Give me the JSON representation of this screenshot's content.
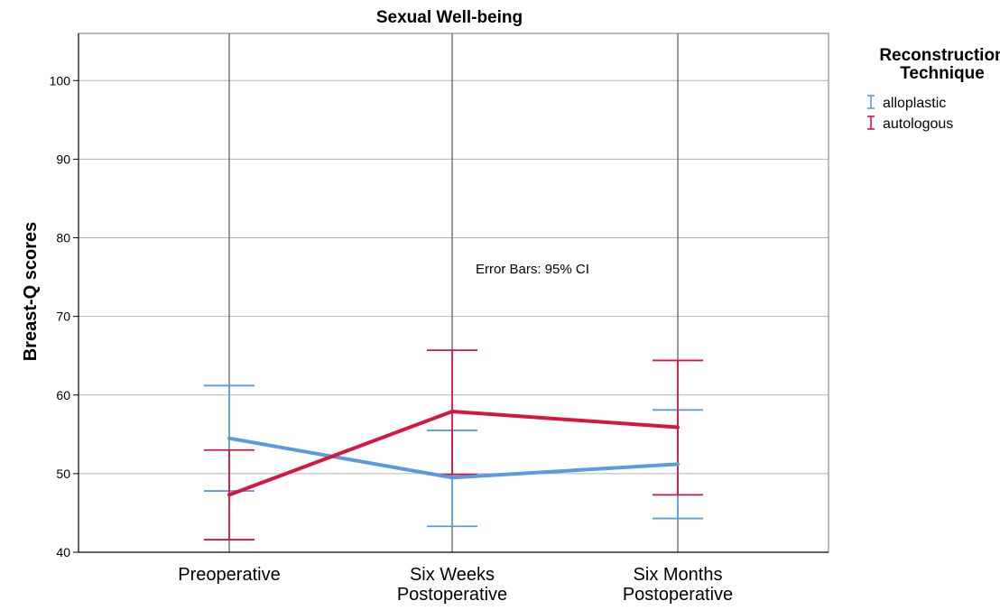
{
  "chart_data": {
    "type": "line",
    "title": "Sexual Well-being",
    "xlabel": "",
    "ylabel": "Breast-Q scores",
    "categories": [
      [
        "Preoperative"
      ],
      [
        "Six Weeks",
        "Postoperative"
      ],
      [
        "Six Months",
        "Postoperative"
      ]
    ],
    "ylim": [
      40,
      106
    ],
    "yticks": [
      40,
      50,
      60,
      70,
      80,
      90,
      100
    ],
    "grid": true,
    "legend": {
      "title": [
        "Reconstruction",
        "Technique"
      ],
      "placement": "top-right, outside plot"
    },
    "annotation": "Error Bars: 95% CI",
    "series": [
      {
        "name": "alloplastic",
        "color": "#5a9be0",
        "values": [
          54.5,
          49.5,
          51.2
        ],
        "ci_low": [
          47.8,
          43.3,
          44.3
        ],
        "ci_high": [
          61.2,
          55.5,
          58.1
        ]
      },
      {
        "name": "autologous",
        "color": "#d6163f",
        "values": [
          47.3,
          57.9,
          55.9
        ],
        "ci_low": [
          41.6,
          49.9,
          47.3
        ],
        "ci_high": [
          53.0,
          65.7,
          64.4
        ]
      }
    ]
  }
}
